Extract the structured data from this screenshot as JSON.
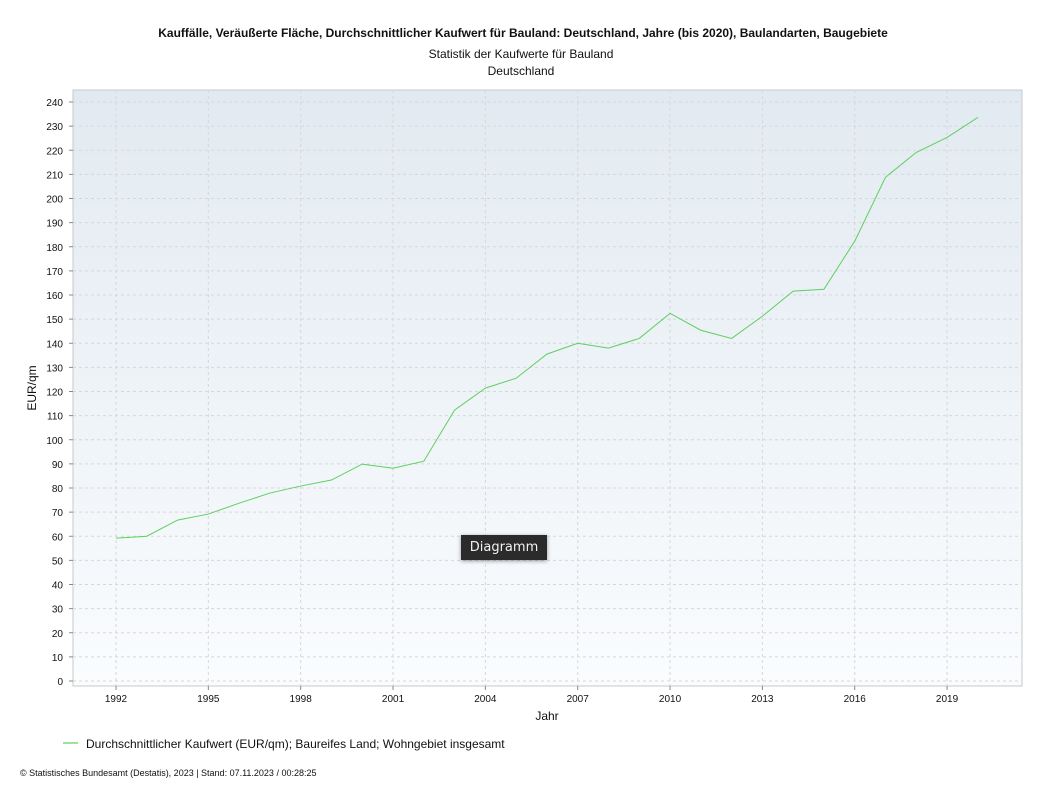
{
  "chart_data": {
    "type": "line",
    "title": "Kauffälle, Veräußerte Fläche, Durchschnittlicher Kaufwert für Bauland: Deutschland, Jahre (bis 2020), Baulandarten, Baugebiete",
    "subtitle": [
      "Statistik der Kaufwerte für Bauland",
      "Deutschland"
    ],
    "xlabel": "Jahr",
    "ylabel": "EUR/qm",
    "ylim": [
      0,
      242
    ],
    "xlim": [
      1990.6,
      2021.4
    ],
    "yticks": [
      0,
      10,
      20,
      30,
      40,
      50,
      60,
      70,
      80,
      90,
      100,
      110,
      120,
      130,
      140,
      150,
      160,
      170,
      180,
      190,
      200,
      210,
      220,
      230,
      240
    ],
    "xticks": [
      "1992",
      "1995",
      "1998",
      "2001",
      "2004",
      "2007",
      "2010",
      "2013",
      "2016",
      "2019"
    ],
    "grid": true,
    "legend_position": "bottom-left",
    "series": [
      {
        "name": "Durchschnittlicher Kaufwert (EUR/qm); Baureifes Land; Wohngebiet insgesamt",
        "color": "#5fcf5f",
        "x": [
          1992,
          1993,
          1994,
          1995,
          1996,
          1997,
          1998,
          1999,
          2000,
          2001,
          2002,
          2003,
          2004,
          2005,
          2006,
          2007,
          2008,
          2009,
          2010,
          2011,
          2012,
          2013,
          2014,
          2015,
          2016,
          2017,
          2018,
          2019,
          2020
        ],
        "values": [
          59.2,
          60.0,
          66.7,
          69.2,
          73.7,
          77.9,
          80.8,
          83.3,
          89.9,
          88.2,
          91.1,
          112.3,
          121.4,
          125.5,
          135.5,
          140.0,
          138.0,
          142.0,
          152.4,
          145.4,
          142.0,
          151.2,
          161.6,
          162.4,
          182.3,
          208.8,
          219.1,
          225.3,
          233.6
        ]
      }
    ]
  },
  "footer": "© Statistisches Bundesamt (Destatis), 2023 | Stand: 07.11.2023 / 00:28:25",
  "tooltip": "Diagramm"
}
